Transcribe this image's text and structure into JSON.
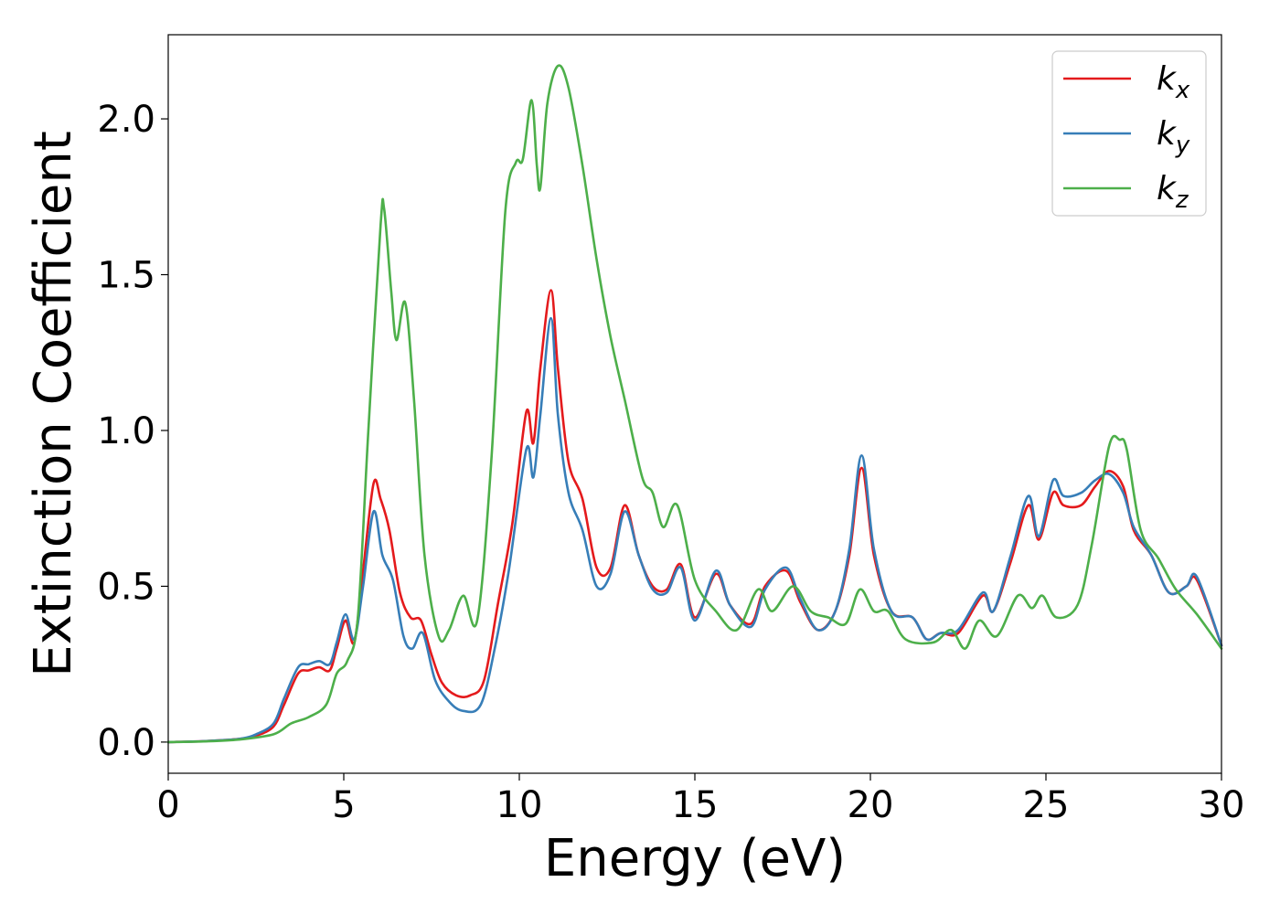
{
  "chart_data": {
    "type": "line",
    "xlabel": "Energy (eV)",
    "ylabel": "Extinction Coefficient",
    "xlim": [
      0,
      30
    ],
    "ylim": [
      -0.1,
      2.27
    ],
    "xticks": [
      "0",
      "5",
      "10",
      "15",
      "20",
      "25",
      "30"
    ],
    "yticks": [
      "0.0",
      "0.5",
      "1.0",
      "1.5",
      "2.0"
    ],
    "grid": false,
    "legend_position": "top-right",
    "series": [
      {
        "name": "k",
        "subscript": "x",
        "color": "#e41a1c",
        "points": [
          [
            0,
            0
          ],
          [
            1,
            0.003
          ],
          [
            2,
            0.01
          ],
          [
            2.5,
            0.02
          ],
          [
            3,
            0.05
          ],
          [
            3.3,
            0.12
          ],
          [
            3.7,
            0.22
          ],
          [
            4,
            0.23
          ],
          [
            4.3,
            0.24
          ],
          [
            4.6,
            0.23
          ],
          [
            4.8,
            0.3
          ],
          [
            5.05,
            0.39
          ],
          [
            5.3,
            0.32
          ],
          [
            5.55,
            0.55
          ],
          [
            5.85,
            0.83
          ],
          [
            6.05,
            0.78
          ],
          [
            6.3,
            0.68
          ],
          [
            6.6,
            0.48
          ],
          [
            6.9,
            0.4
          ],
          [
            7.2,
            0.39
          ],
          [
            7.5,
            0.28
          ],
          [
            7.8,
            0.19
          ],
          [
            8.2,
            0.15
          ],
          [
            8.6,
            0.15
          ],
          [
            9.0,
            0.2
          ],
          [
            9.4,
            0.45
          ],
          [
            9.8,
            0.7
          ],
          [
            10.2,
            1.06
          ],
          [
            10.4,
            0.96
          ],
          [
            10.6,
            1.2
          ],
          [
            10.9,
            1.45
          ],
          [
            11.1,
            1.2
          ],
          [
            11.4,
            0.9
          ],
          [
            11.8,
            0.78
          ],
          [
            12.2,
            0.56
          ],
          [
            12.6,
            0.56
          ],
          [
            13.0,
            0.76
          ],
          [
            13.4,
            0.6
          ],
          [
            13.8,
            0.5
          ],
          [
            14.2,
            0.49
          ],
          [
            14.6,
            0.57
          ],
          [
            15.0,
            0.4
          ],
          [
            15.6,
            0.54
          ],
          [
            16.0,
            0.44
          ],
          [
            16.6,
            0.38
          ],
          [
            17.0,
            0.5
          ],
          [
            17.6,
            0.55
          ],
          [
            18.0,
            0.45
          ],
          [
            18.5,
            0.36
          ],
          [
            19.0,
            0.42
          ],
          [
            19.4,
            0.6
          ],
          [
            19.75,
            0.88
          ],
          [
            20.1,
            0.6
          ],
          [
            20.6,
            0.42
          ],
          [
            21.2,
            0.4
          ],
          [
            21.6,
            0.33
          ],
          [
            22,
            0.35
          ],
          [
            22.5,
            0.35
          ],
          [
            23.2,
            0.47
          ],
          [
            23.5,
            0.42
          ],
          [
            24,
            0.58
          ],
          [
            24.5,
            0.76
          ],
          [
            24.8,
            0.65
          ],
          [
            25.2,
            0.8
          ],
          [
            25.5,
            0.76
          ],
          [
            26,
            0.76
          ],
          [
            26.4,
            0.82
          ],
          [
            26.8,
            0.87
          ],
          [
            27.2,
            0.82
          ],
          [
            27.5,
            0.68
          ],
          [
            28,
            0.6
          ],
          [
            28.5,
            0.48
          ],
          [
            29.0,
            0.5
          ],
          [
            29.3,
            0.52
          ],
          [
            30,
            0.31
          ]
        ]
      },
      {
        "name": "k",
        "subscript": "y",
        "color": "#377eb8",
        "points": [
          [
            0,
            0
          ],
          [
            1,
            0.003
          ],
          [
            2,
            0.01
          ],
          [
            2.5,
            0.025
          ],
          [
            3,
            0.06
          ],
          [
            3.3,
            0.14
          ],
          [
            3.7,
            0.24
          ],
          [
            4,
            0.25
          ],
          [
            4.3,
            0.26
          ],
          [
            4.6,
            0.25
          ],
          [
            4.8,
            0.32
          ],
          [
            5.05,
            0.41
          ],
          [
            5.3,
            0.33
          ],
          [
            5.55,
            0.5
          ],
          [
            5.85,
            0.74
          ],
          [
            6.1,
            0.6
          ],
          [
            6.4,
            0.52
          ],
          [
            6.7,
            0.34
          ],
          [
            6.95,
            0.3
          ],
          [
            7.25,
            0.35
          ],
          [
            7.6,
            0.2
          ],
          [
            8.0,
            0.13
          ],
          [
            8.4,
            0.1
          ],
          [
            8.9,
            0.12
          ],
          [
            9.3,
            0.3
          ],
          [
            9.7,
            0.55
          ],
          [
            10.2,
            0.94
          ],
          [
            10.4,
            0.85
          ],
          [
            10.6,
            1.05
          ],
          [
            10.9,
            1.36
          ],
          [
            11.1,
            1.05
          ],
          [
            11.4,
            0.8
          ],
          [
            11.8,
            0.68
          ],
          [
            12.2,
            0.5
          ],
          [
            12.6,
            0.54
          ],
          [
            13.0,
            0.74
          ],
          [
            13.4,
            0.6
          ],
          [
            13.8,
            0.49
          ],
          [
            14.2,
            0.48
          ],
          [
            14.6,
            0.56
          ],
          [
            15.0,
            0.39
          ],
          [
            15.6,
            0.55
          ],
          [
            16.0,
            0.44
          ],
          [
            16.6,
            0.37
          ],
          [
            17.0,
            0.49
          ],
          [
            17.6,
            0.56
          ],
          [
            18.0,
            0.46
          ],
          [
            18.5,
            0.36
          ],
          [
            19.0,
            0.42
          ],
          [
            19.4,
            0.62
          ],
          [
            19.75,
            0.92
          ],
          [
            20.1,
            0.62
          ],
          [
            20.6,
            0.42
          ],
          [
            21.2,
            0.4
          ],
          [
            21.6,
            0.33
          ],
          [
            22,
            0.35
          ],
          [
            22.5,
            0.36
          ],
          [
            23.2,
            0.48
          ],
          [
            23.5,
            0.42
          ],
          [
            24,
            0.6
          ],
          [
            24.5,
            0.79
          ],
          [
            24.8,
            0.66
          ],
          [
            25.2,
            0.84
          ],
          [
            25.5,
            0.79
          ],
          [
            26,
            0.8
          ],
          [
            26.4,
            0.84
          ],
          [
            26.8,
            0.86
          ],
          [
            27.2,
            0.8
          ],
          [
            27.5,
            0.69
          ],
          [
            28,
            0.6
          ],
          [
            28.5,
            0.48
          ],
          [
            29.0,
            0.5
          ],
          [
            29.3,
            0.53
          ],
          [
            30,
            0.31
          ]
        ]
      },
      {
        "name": "k",
        "subscript": "z",
        "color": "#4daf4a",
        "points": [
          [
            0,
            0
          ],
          [
            1,
            0.002
          ],
          [
            2,
            0.008
          ],
          [
            3,
            0.025
          ],
          [
            3.5,
            0.06
          ],
          [
            4,
            0.08
          ],
          [
            4.5,
            0.12
          ],
          [
            4.8,
            0.22
          ],
          [
            5.1,
            0.26
          ],
          [
            5.4,
            0.4
          ],
          [
            5.7,
            1.0
          ],
          [
            6.05,
            1.66
          ],
          [
            6.15,
            1.71
          ],
          [
            6.35,
            1.45
          ],
          [
            6.5,
            1.29
          ],
          [
            6.75,
            1.41
          ],
          [
            7.0,
            1.1
          ],
          [
            7.3,
            0.6
          ],
          [
            7.7,
            0.34
          ],
          [
            8.0,
            0.36
          ],
          [
            8.4,
            0.47
          ],
          [
            8.8,
            0.39
          ],
          [
            9.2,
            0.9
          ],
          [
            9.6,
            1.7
          ],
          [
            9.9,
            1.86
          ],
          [
            10.1,
            1.87
          ],
          [
            10.35,
            2.06
          ],
          [
            10.5,
            1.85
          ],
          [
            10.6,
            1.78
          ],
          [
            10.8,
            2.05
          ],
          [
            11.1,
            2.17
          ],
          [
            11.4,
            2.1
          ],
          [
            11.8,
            1.85
          ],
          [
            12.2,
            1.55
          ],
          [
            12.6,
            1.3
          ],
          [
            13.0,
            1.1
          ],
          [
            13.5,
            0.85
          ],
          [
            13.8,
            0.8
          ],
          [
            14.1,
            0.69
          ],
          [
            14.5,
            0.76
          ],
          [
            15.0,
            0.52
          ],
          [
            15.6,
            0.42
          ],
          [
            16.2,
            0.36
          ],
          [
            16.8,
            0.49
          ],
          [
            17.2,
            0.42
          ],
          [
            17.8,
            0.5
          ],
          [
            18.3,
            0.42
          ],
          [
            18.8,
            0.4
          ],
          [
            19.3,
            0.38
          ],
          [
            19.7,
            0.49
          ],
          [
            20.1,
            0.42
          ],
          [
            20.5,
            0.42
          ],
          [
            21.0,
            0.33
          ],
          [
            21.8,
            0.32
          ],
          [
            22.3,
            0.36
          ],
          [
            22.7,
            0.3
          ],
          [
            23.1,
            0.39
          ],
          [
            23.6,
            0.34
          ],
          [
            24.2,
            0.47
          ],
          [
            24.6,
            0.43
          ],
          [
            24.9,
            0.47
          ],
          [
            25.3,
            0.4
          ],
          [
            25.9,
            0.44
          ],
          [
            26.3,
            0.63
          ],
          [
            26.8,
            0.95
          ],
          [
            27.1,
            0.97
          ],
          [
            27.3,
            0.94
          ],
          [
            27.7,
            0.68
          ],
          [
            28.2,
            0.59
          ],
          [
            28.7,
            0.49
          ],
          [
            29.3,
            0.41
          ],
          [
            30,
            0.3
          ]
        ]
      }
    ]
  }
}
